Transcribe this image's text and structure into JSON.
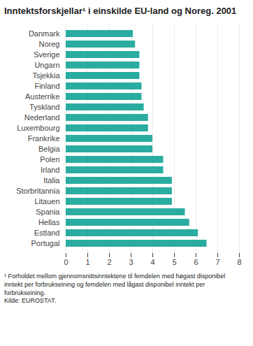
{
  "chart_data": {
    "type": "bar",
    "orientation": "horizontal",
    "title": "Inntektsforskjellar¹ i einskilde EU-land og Noreg. 2001",
    "categories": [
      "Danmark",
      "Noreg",
      "Sverige",
      "Ungarn",
      "Tsjekkia",
      "Finland",
      "Austerrike",
      "Tyskland",
      "Nederland",
      "Luxembourg",
      "Frankrike",
      "Belgia",
      "Polen",
      "Irland",
      "Italia",
      "Storbritannia",
      "Litauen",
      "Spania",
      "Hellas",
      "Estland",
      "Portugal"
    ],
    "values": [
      3.1,
      3.2,
      3.4,
      3.4,
      3.4,
      3.5,
      3.5,
      3.6,
      3.8,
      3.8,
      4.0,
      4.0,
      4.5,
      4.5,
      4.9,
      4.9,
      4.9,
      5.5,
      5.7,
      6.1,
      6.5
    ],
    "color": "#2aada0",
    "xlim": [
      0,
      8
    ],
    "xticks": [
      0,
      1,
      2,
      3,
      4,
      5,
      6,
      7,
      8
    ],
    "grid": true,
    "footnote": "¹ Forholdet mellom gjennomsnittsinntektene til femdelen med høgast disponibel\ninntekt per forbrukseining og femdelen med lågast disponibel inntekt per\nforbrukseining.\nKilde: EUROSTAT."
  }
}
